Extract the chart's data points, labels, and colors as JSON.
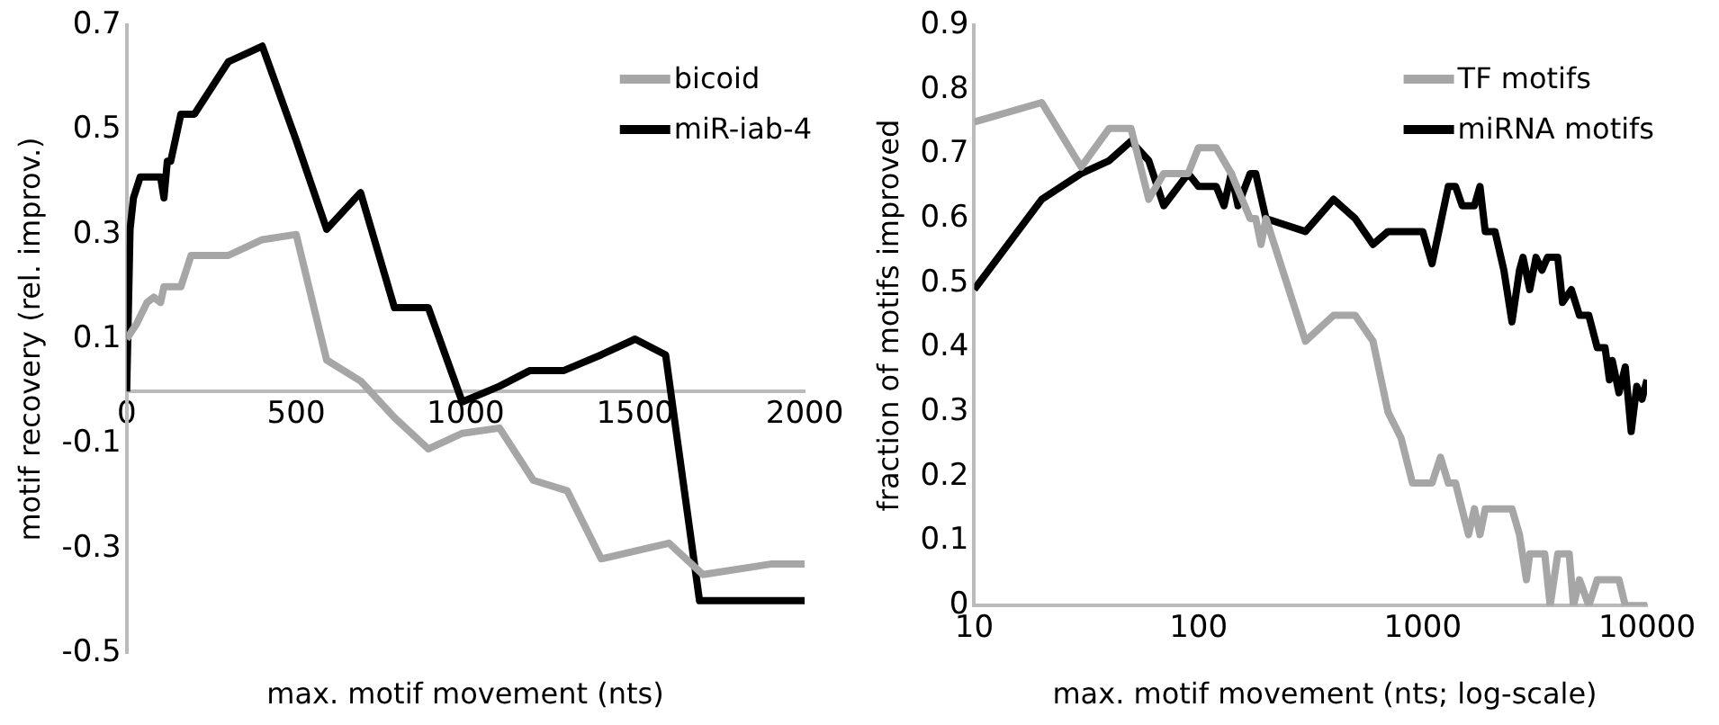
{
  "chart_data": [
    {
      "type": "line",
      "xlabel": "max. motif movement (nts)",
      "ylabel": "motif recovery (rel. improv.)",
      "xlim": [
        0,
        2000
      ],
      "xticks": [
        0,
        500,
        1000,
        1500,
        2000
      ],
      "ylim": [
        -0.5,
        0.7
      ],
      "yticks": [
        -0.5,
        -0.3,
        -0.1,
        0.1,
        0.3,
        0.5,
        0.7
      ],
      "grid": false,
      "legend": "top right",
      "marker": "none",
      "line_style": "solid",
      "series": [
        {
          "name": "bicoid",
          "color": "#a6a6a6",
          "x": [
            0,
            30,
            60,
            80,
            100,
            110,
            160,
            190,
            200,
            300,
            400,
            500,
            590,
            690,
            790,
            890,
            990,
            1100,
            1200,
            1300,
            1400,
            1600,
            1700,
            1900,
            2000
          ],
          "values": [
            0.1,
            0.13,
            0.17,
            0.18,
            0.17,
            0.2,
            0.2,
            0.26,
            0.26,
            0.26,
            0.29,
            0.3,
            0.06,
            0.02,
            -0.05,
            -0.11,
            -0.08,
            -0.07,
            -0.17,
            -0.19,
            -0.32,
            -0.29,
            -0.35,
            -0.33,
            -0.33
          ]
        },
        {
          "name": "miR-iab-4",
          "color": "#000000",
          "x": [
            0,
            10,
            20,
            40,
            100,
            110,
            120,
            130,
            160,
            200,
            300,
            400,
            500,
            590,
            690,
            790,
            890,
            990,
            1100,
            1190,
            1290,
            1400,
            1500,
            1590,
            1690,
            2000
          ],
          "values": [
            0,
            0.31,
            0.37,
            0.41,
            0.41,
            0.37,
            0.44,
            0.44,
            0.53,
            0.53,
            0.63,
            0.66,
            0.48,
            0.31,
            0.38,
            0.16,
            0.16,
            -0.02,
            0.01,
            0.04,
            0.04,
            0.07,
            0.1,
            0.07,
            -0.4,
            -0.4
          ]
        }
      ]
    },
    {
      "type": "line",
      "xlabel": "max. motif movement (nts; log-scale)",
      "ylabel": "fraction of motifs improved",
      "log": "x",
      "xlim": [
        10,
        10000
      ],
      "xticks": [
        10,
        100,
        1000,
        10000
      ],
      "ylim": [
        0,
        0.9
      ],
      "yticks": [
        0,
        0.1,
        0.2,
        0.3,
        0.4,
        0.5,
        0.6,
        0.7,
        0.8,
        0.9
      ],
      "grid": false,
      "legend": "top right",
      "marker": "none",
      "line_style": "solid",
      "series": [
        {
          "name": "TF motifs",
          "color": "#a6a6a6",
          "x": [
            10,
            20,
            30,
            40,
            50,
            60,
            70,
            90,
            100,
            120,
            140,
            170,
            180,
            190,
            200,
            300,
            400,
            500,
            600,
            700,
            800,
            900,
            1000,
            1100,
            1200,
            1300,
            1400,
            1600,
            1700,
            1800,
            1900,
            2500,
            2700,
            2900,
            3000,
            3500,
            3700,
            4000,
            4500,
            4700,
            5000,
            5500,
            6000,
            7500,
            8000,
            10000
          ],
          "values": [
            0.75,
            0.78,
            0.68,
            0.74,
            0.74,
            0.63,
            0.67,
            0.67,
            0.71,
            0.71,
            0.67,
            0.6,
            0.6,
            0.56,
            0.6,
            0.41,
            0.45,
            0.45,
            0.41,
            0.3,
            0.26,
            0.19,
            0.19,
            0.19,
            0.23,
            0.19,
            0.19,
            0.11,
            0.15,
            0.11,
            0.15,
            0.15,
            0.11,
            0.04,
            0.08,
            0.08,
            0,
            0.08,
            0.08,
            0,
            0.04,
            0,
            0.04,
            0.04,
            0,
            0
          ]
        },
        {
          "name": "miRNA motifs",
          "color": "#000000",
          "x": [
            10,
            20,
            30,
            40,
            50,
            60,
            70,
            90,
            100,
            120,
            130,
            140,
            150,
            170,
            180,
            200,
            300,
            400,
            500,
            600,
            700,
            900,
            1000,
            1100,
            1300,
            1400,
            1500,
            1700,
            1800,
            1900,
            2100,
            2300,
            2500,
            2700,
            2800,
            3000,
            3200,
            3400,
            3600,
            4000,
            4200,
            4600,
            5000,
            5500,
            6000,
            6500,
            6800,
            7000,
            7500,
            8000,
            8500,
            9000,
            9500,
            10000
          ],
          "values": [
            0.49,
            0.63,
            0.67,
            0.69,
            0.72,
            0.69,
            0.62,
            0.67,
            0.65,
            0.65,
            0.62,
            0.67,
            0.62,
            0.67,
            0.67,
            0.6,
            0.58,
            0.63,
            0.6,
            0.56,
            0.58,
            0.58,
            0.58,
            0.53,
            0.65,
            0.65,
            0.62,
            0.62,
            0.65,
            0.58,
            0.58,
            0.52,
            0.44,
            0.52,
            0.54,
            0.49,
            0.54,
            0.52,
            0.54,
            0.54,
            0.47,
            0.49,
            0.45,
            0.45,
            0.4,
            0.4,
            0.35,
            0.38,
            0.33,
            0.37,
            0.27,
            0.34,
            0.32,
            0.35
          ]
        }
      ]
    }
  ]
}
